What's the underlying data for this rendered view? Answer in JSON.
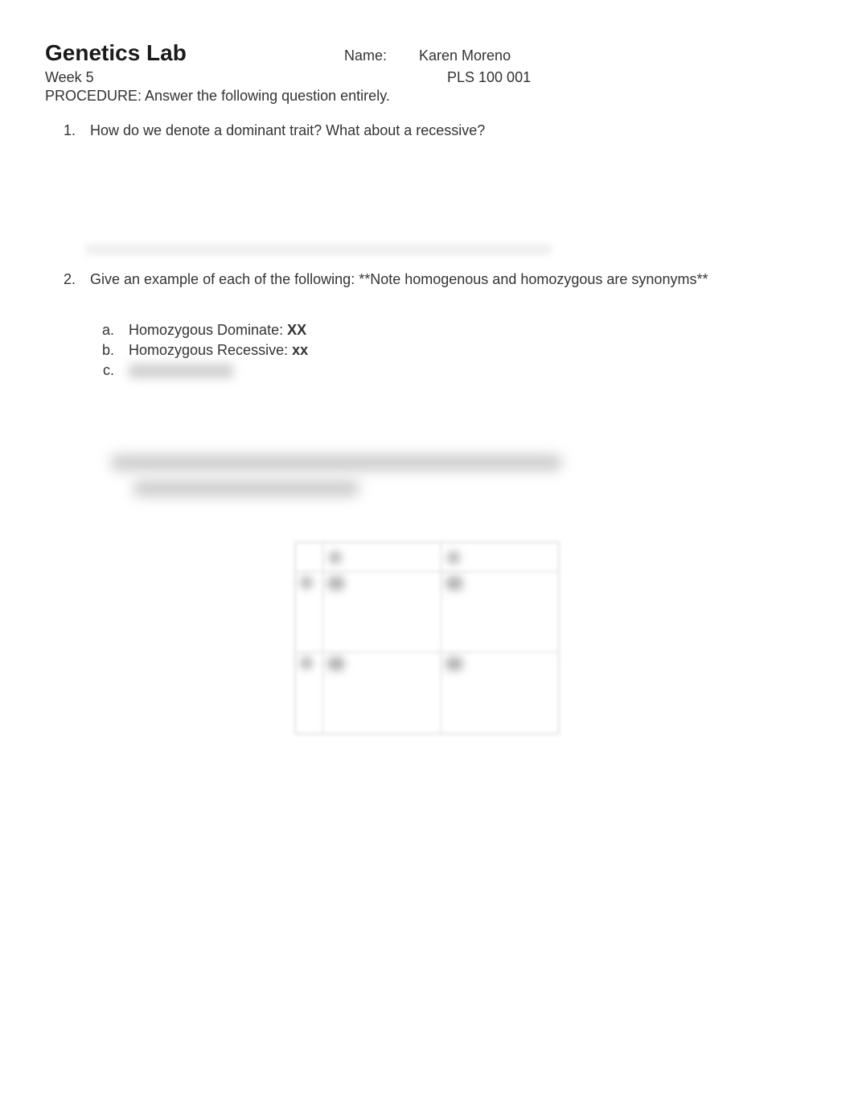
{
  "header": {
    "title": "Genetics Lab",
    "name_label": "Name:",
    "name_value": "Karen Moreno",
    "week": "Week 5",
    "course": "PLS 100  001",
    "procedure": "PROCEDURE: Answer the following question entirely."
  },
  "questions": {
    "q1": {
      "number": "1.",
      "text": "How do we denote a dominant trait? What about a recessive?"
    },
    "q2": {
      "number": "2.",
      "text": "Give an example of each of the following: **Note homogenous and homozygous are synonyms**",
      "sub_a": {
        "letter": "a.",
        "label": "Homozygous Dominate:  ",
        "value": "XX"
      },
      "sub_b": {
        "letter": "b.",
        "label": "Homozygous Recessive: ",
        "value": "xx"
      },
      "sub_c": {
        "letter": "c."
      }
    }
  },
  "colors": {
    "background": "#ffffff",
    "text": "#333333",
    "title": "#1a1a1a",
    "blur_light": "#f0f0f0",
    "blur_medium": "#cccccc",
    "blur_dark": "#b0b0b0",
    "border": "#d0d0d0"
  },
  "typography": {
    "title_fontsize": 28,
    "body_fontsize": 18,
    "font_family": "Segoe UI"
  }
}
